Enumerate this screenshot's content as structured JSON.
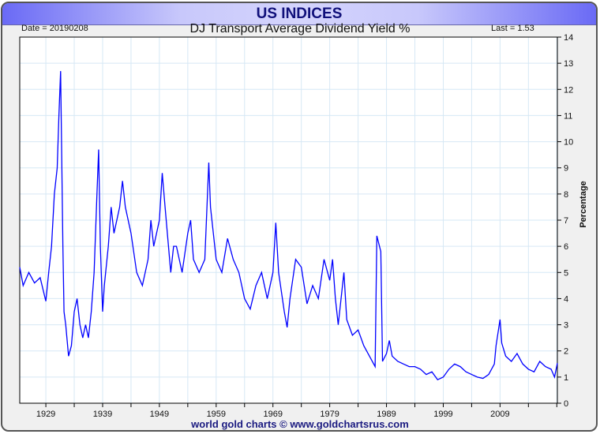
{
  "banner": "US INDICES",
  "date_label": "Date = 20190208",
  "last_label": "Last = 1.53",
  "footer": "world gold charts © www.goldchartsrus.com",
  "colors": {
    "line": "#0000ff",
    "grid": "#d6e8f5"
  },
  "chart_data": {
    "type": "line",
    "title": "DJ Transport Average Dividend Yield %",
    "xlabel": "",
    "ylabel": "Percentage",
    "xlim": [
      1924.4,
      2019.1
    ],
    "ylim": [
      0,
      14
    ],
    "x_ticks": [
      1929,
      1939,
      1949,
      1959,
      1969,
      1979,
      1989,
      1999,
      2009
    ],
    "y_ticks": [
      0,
      1,
      2,
      3,
      4,
      5,
      6,
      7,
      8,
      9,
      10,
      11,
      12,
      13,
      14
    ],
    "grid": true,
    "series": [
      {
        "name": "DJ Transport Average Dividend Yield %",
        "points": [
          [
            1924.4,
            5.2
          ],
          [
            1925,
            4.5
          ],
          [
            1926,
            5.0
          ],
          [
            1927,
            4.6
          ],
          [
            1928,
            4.8
          ],
          [
            1929,
            3.9
          ],
          [
            1929.5,
            5.0
          ],
          [
            1930,
            6.0
          ],
          [
            1930.5,
            8.0
          ],
          [
            1931,
            9.0
          ],
          [
            1931.3,
            11.0
          ],
          [
            1931.6,
            12.7
          ],
          [
            1932,
            6.0
          ],
          [
            1932.2,
            3.5
          ],
          [
            1932.5,
            3.0
          ],
          [
            1933,
            1.8
          ],
          [
            1933.5,
            2.2
          ],
          [
            1934,
            3.5
          ],
          [
            1934.5,
            4.0
          ],
          [
            1935,
            3.0
          ],
          [
            1935.5,
            2.5
          ],
          [
            1936,
            3.0
          ],
          [
            1936.5,
            2.5
          ],
          [
            1937,
            3.5
          ],
          [
            1937.5,
            5.0
          ],
          [
            1938,
            8.0
          ],
          [
            1938.3,
            9.7
          ],
          [
            1938.6,
            6.0
          ],
          [
            1939,
            3.5
          ],
          [
            1939.3,
            4.5
          ],
          [
            1940,
            6.0
          ],
          [
            1940.5,
            7.5
          ],
          [
            1941,
            6.5
          ],
          [
            1942,
            7.5
          ],
          [
            1942.5,
            8.5
          ],
          [
            1943,
            7.5
          ],
          [
            1944,
            6.5
          ],
          [
            1945,
            5.0
          ],
          [
            1946,
            4.5
          ],
          [
            1947,
            5.5
          ],
          [
            1947.5,
            7.0
          ],
          [
            1948,
            6.0
          ],
          [
            1949,
            7.0
          ],
          [
            1949.5,
            8.8
          ],
          [
            1950,
            7.5
          ],
          [
            1951,
            5.0
          ],
          [
            1951.5,
            6.0
          ],
          [
            1952,
            6.0
          ],
          [
            1953,
            5.0
          ],
          [
            1954,
            6.5
          ],
          [
            1954.5,
            7.0
          ],
          [
            1955,
            5.5
          ],
          [
            1956,
            5.0
          ],
          [
            1957,
            5.5
          ],
          [
            1957.7,
            9.2
          ],
          [
            1958,
            7.5
          ],
          [
            1959,
            5.5
          ],
          [
            1960,
            5.0
          ],
          [
            1961,
            6.3
          ],
          [
            1962,
            5.5
          ],
          [
            1963,
            5.0
          ],
          [
            1964,
            4.0
          ],
          [
            1965,
            3.6
          ],
          [
            1966,
            4.5
          ],
          [
            1967,
            5.0
          ],
          [
            1968,
            4.0
          ],
          [
            1969,
            5.0
          ],
          [
            1969.5,
            6.9
          ],
          [
            1970,
            5.0
          ],
          [
            1971,
            3.5
          ],
          [
            1971.5,
            2.9
          ],
          [
            1972,
            4.0
          ],
          [
            1973,
            5.5
          ],
          [
            1974,
            5.2
          ],
          [
            1975,
            3.8
          ],
          [
            1976,
            4.5
          ],
          [
            1977,
            4.0
          ],
          [
            1978,
            5.5
          ],
          [
            1979,
            4.7
          ],
          [
            1979.5,
            5.5
          ],
          [
            1980,
            4.0
          ],
          [
            1980.5,
            3.0
          ],
          [
            1981,
            4.0
          ],
          [
            1981.5,
            5.0
          ],
          [
            1982,
            3.2
          ],
          [
            1983,
            2.6
          ],
          [
            1984,
            2.8
          ],
          [
            1985,
            2.2
          ],
          [
            1986,
            1.8
          ],
          [
            1987,
            1.4
          ],
          [
            1987.3,
            6.4
          ],
          [
            1988,
            5.8
          ],
          [
            1988.3,
            1.6
          ],
          [
            1989,
            1.9
          ],
          [
            1989.5,
            2.4
          ],
          [
            1990,
            1.8
          ],
          [
            1991,
            1.6
          ],
          [
            1992,
            1.5
          ],
          [
            1993,
            1.4
          ],
          [
            1994,
            1.4
          ],
          [
            1995,
            1.3
          ],
          [
            1996,
            1.1
          ],
          [
            1997,
            1.2
          ],
          [
            1998,
            0.9
          ],
          [
            1999,
            1.0
          ],
          [
            2000,
            1.3
          ],
          [
            2001,
            1.5
          ],
          [
            2002,
            1.4
          ],
          [
            2003,
            1.2
          ],
          [
            2004,
            1.1
          ],
          [
            2005,
            1.0
          ],
          [
            2006,
            0.95
          ],
          [
            2007,
            1.1
          ],
          [
            2008,
            1.5
          ],
          [
            2008.3,
            2.2
          ],
          [
            2009,
            3.2
          ],
          [
            2009.3,
            2.3
          ],
          [
            2010,
            1.8
          ],
          [
            2011,
            1.6
          ],
          [
            2012,
            1.9
          ],
          [
            2013,
            1.5
          ],
          [
            2014,
            1.3
          ],
          [
            2015,
            1.2
          ],
          [
            2016,
            1.6
          ],
          [
            2017,
            1.4
          ],
          [
            2018,
            1.3
          ],
          [
            2018.6,
            1.0
          ],
          [
            2019.1,
            1.53
          ]
        ]
      }
    ]
  }
}
